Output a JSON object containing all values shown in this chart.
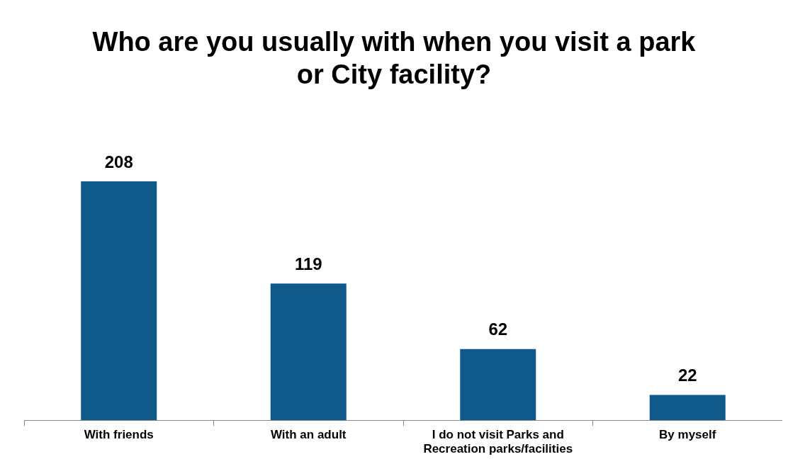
{
  "chart_data": {
    "type": "bar",
    "title": "Who are you usually with when you visit a park or City facility?",
    "categories": [
      "With friends",
      "With an adult",
      "I do not visit Parks and Recreation parks/facilities",
      "By myself"
    ],
    "values": [
      208,
      119,
      62,
      22
    ],
    "color": "#0f5a8a",
    "data_labels": true,
    "grid": false,
    "legend": false
  }
}
